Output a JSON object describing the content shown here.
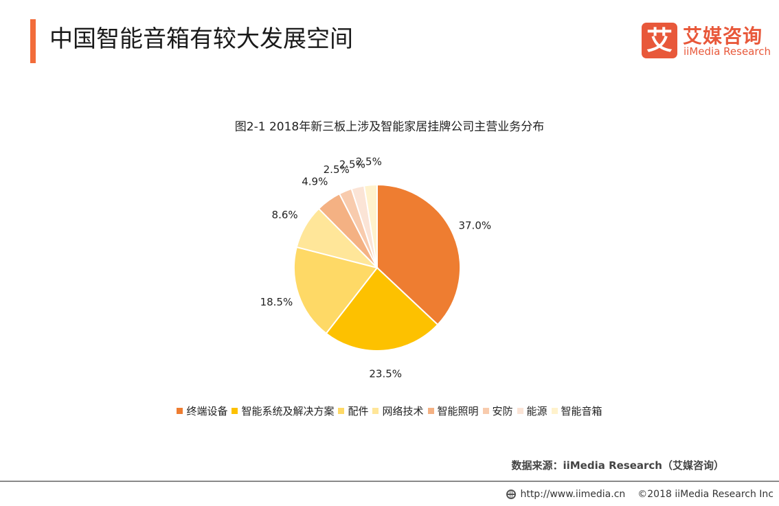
{
  "header": {
    "title": "中国智能音箱有较大发展空间",
    "logo_mark": "艾",
    "logo_cn": "艾媒咨询",
    "logo_en": "iiMedia Research"
  },
  "colors": {
    "accent": "#f26c3a",
    "brand": "#e8583a"
  },
  "chart_data": {
    "type": "pie",
    "title": "图2-1 2018年新三板上涉及智能家居挂牌公司主营业务分布",
    "categories": [
      "终端设备",
      "智能系统及解决方案",
      "配件",
      "网络技术",
      "智能照明",
      "安防",
      "能源",
      "智能音箱"
    ],
    "values": [
      37.0,
      23.5,
      18.5,
      8.6,
      4.9,
      2.5,
      2.5,
      2.5
    ],
    "labels": [
      "37.0%",
      "23.5%",
      "18.5%",
      "8.6%",
      "4.9%",
      "2.5%",
      "2.5%",
      "2.5%"
    ],
    "colors": [
      "#ee7d31",
      "#fdc100",
      "#fed966",
      "#ffe699",
      "#f4b183",
      "#f8cbad",
      "#fbe4d6",
      "#fff2cc"
    ],
    "legend_position": "bottom",
    "start_angle_deg": 0,
    "direction": "clockwise"
  },
  "source": "数据来源：iiMedia Research（艾媒咨询）",
  "footer": {
    "url": "http://www.iimedia.cn",
    "copyright": "©2018  iiMedia Research Inc"
  }
}
